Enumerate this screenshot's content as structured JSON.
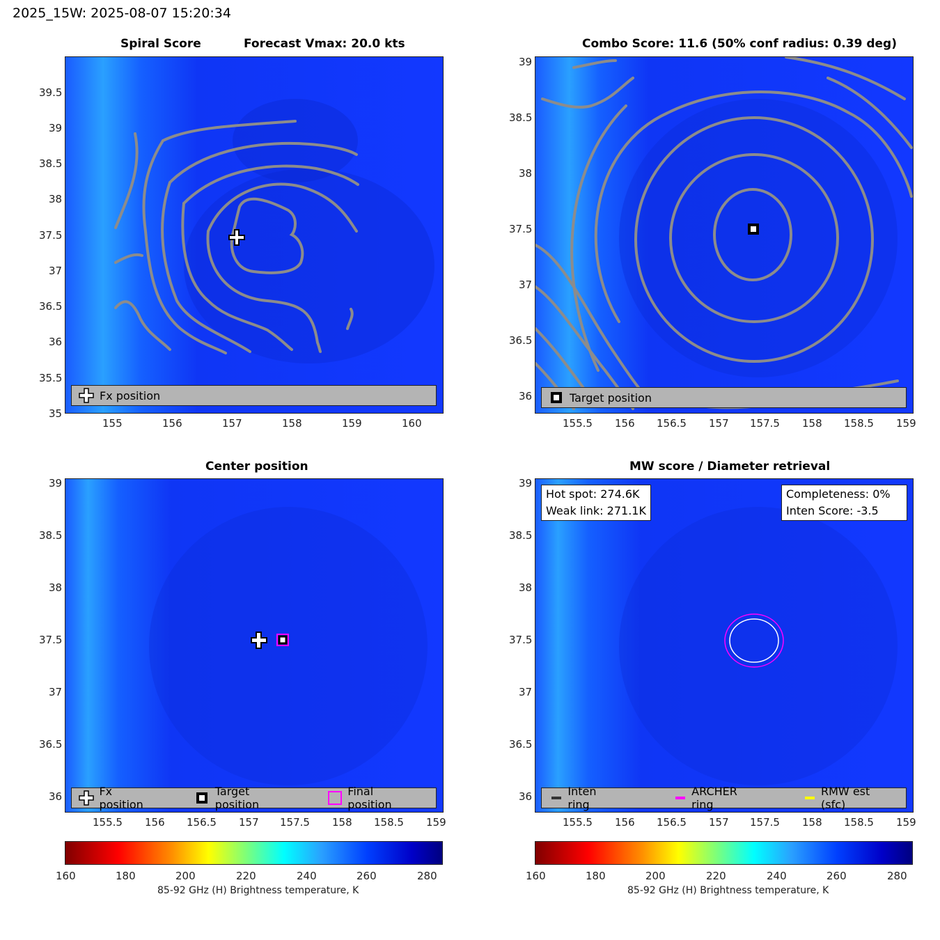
{
  "header": {
    "title": "2025_15W: 2025-08-07 15:20:34"
  },
  "panels": {
    "spiral": {
      "title_left": "Spiral Score",
      "title_right": "Forecast Vmax: 20.0 kts",
      "legend": [
        "Fx position"
      ]
    },
    "combo": {
      "title": "Combo Score: 11.6  (50% conf radius: 0.39 deg)",
      "legend": [
        "Target position"
      ]
    },
    "center": {
      "title": "Center position",
      "legend": [
        "Fx position",
        "Target position",
        "Final position"
      ]
    },
    "mw": {
      "title": "MW score / Diameter retrieval",
      "hot_spot": "Hot spot: 274.6K",
      "weak_link": "Weak link: 271.1K",
      "completeness": "Completeness: 0%",
      "inten_score": "Inten Score: -3.5",
      "legend": [
        "Inten ring",
        "ARCHER ring",
        "RMW est (sfc)"
      ]
    }
  },
  "colorbar": {
    "label": "85-92 GHz (H) Brightness temperature, K",
    "ticks": [
      "160",
      "180",
      "200",
      "220",
      "240",
      "260",
      "280"
    ]
  },
  "colors": {
    "field": "#1238ff",
    "warm_band": "#2aa0ff",
    "contour": "#8c8c8c",
    "archer": "#ff00ff",
    "rmw": "#ffff00",
    "legend_bg": "#b4b4b4"
  },
  "chart_data": [
    {
      "type": "heatmap",
      "title": "Spiral Score   Forecast Vmax: 20.0 kts",
      "xlim": [
        154.2,
        160.5
      ],
      "ylim": [
        35,
        40
      ],
      "xticks": [
        "155",
        "156",
        "157",
        "158",
        "159",
        "160"
      ],
      "yticks": [
        "35",
        "35.5",
        "36",
        "36.5",
        "37",
        "37.5",
        "38",
        "38.5",
        "39",
        "39.5"
      ],
      "markers": [
        {
          "name": "Fx position",
          "x": 157.07,
          "y": 37.45
        }
      ],
      "overlay": "spiral score contours",
      "colorscale": "85-92 GHz brightness temperature 160-285 K"
    },
    {
      "type": "heatmap",
      "title": "Combo Score: 11.6  (50% conf radius: 0.39 deg)",
      "xlim": [
        155.0,
        159.05
      ],
      "ylim": [
        35.85,
        39.05
      ],
      "xticks": [
        "155.5",
        "156",
        "156.5",
        "157",
        "157.5",
        "158",
        "158.5",
        "159"
      ],
      "yticks": [
        "36",
        "36.5",
        "37",
        "37.5",
        "38",
        "38.5",
        "39"
      ],
      "markers": [
        {
          "name": "Target position",
          "x": 157.38,
          "y": 37.49
        }
      ],
      "overlay": "concentric combo score contours"
    },
    {
      "type": "heatmap",
      "title": "Center position",
      "xlim": [
        155.0,
        159.05
      ],
      "ylim": [
        35.85,
        39.05
      ],
      "xticks": [
        "155.5",
        "156",
        "156.5",
        "157",
        "157.5",
        "158",
        "158.5",
        "159"
      ],
      "yticks": [
        "36",
        "36.5",
        "37",
        "37.5",
        "38",
        "38.5",
        "39"
      ],
      "markers": [
        {
          "name": "Fx position",
          "x": 157.07,
          "y": 37.44
        },
        {
          "name": "Target position",
          "x": 157.38,
          "y": 37.49
        },
        {
          "name": "Final position",
          "x": 157.38,
          "y": 37.49
        }
      ]
    },
    {
      "type": "heatmap",
      "title": "MW score / Diameter retrieval",
      "xlim": [
        155.0,
        159.05
      ],
      "ylim": [
        35.85,
        39.05
      ],
      "xticks": [
        "155.5",
        "156",
        "156.5",
        "157",
        "157.5",
        "158",
        "158.5",
        "159"
      ],
      "yticks": [
        "36",
        "36.5",
        "37",
        "37.5",
        "38",
        "38.5",
        "39"
      ],
      "rings": [
        {
          "name": "ARCHER ring",
          "center": [
            157.38,
            37.49
          ],
          "radius_deg": 0.29
        },
        {
          "name": "RMW est (sfc)",
          "center": [
            157.38,
            37.49
          ],
          "radius_deg": 0.23
        }
      ],
      "legend_entries": [
        "Inten ring",
        "ARCHER ring",
        "RMW est (sfc)"
      ]
    }
  ]
}
